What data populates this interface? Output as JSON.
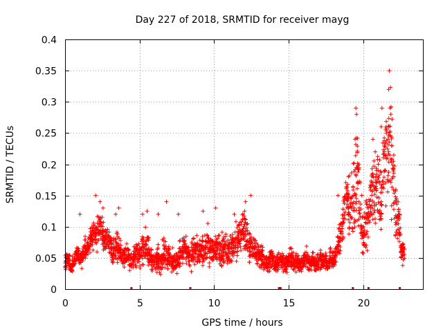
{
  "chart_data": {
    "type": "scatter",
    "title": "Day 227 of 2018, SRMTID for receiver mayg",
    "xlabel": "GPS time / hours",
    "ylabel": "SRMTID / TECUs",
    "xlim": [
      0,
      24
    ],
    "ylim": [
      0,
      0.4
    ],
    "x_ticks": [
      0,
      5,
      10,
      15,
      20
    ],
    "x_tick_labels": [
      "0",
      "5",
      "10",
      "15",
      "20"
    ],
    "y_ticks": [
      0,
      0.05,
      0.1,
      0.15,
      0.2,
      0.25,
      0.3,
      0.35,
      0.4
    ],
    "y_tick_labels": [
      "0",
      "0.05",
      "0.1",
      "0.15",
      "0.2",
      "0.25",
      "0.3",
      "0.35",
      "0.4"
    ],
    "grid": true,
    "marker": "plus",
    "color": "#ff0000",
    "series": [
      {
        "name": "SRMTID",
        "x": [
          0.0,
          0.2,
          0.4,
          0.6,
          0.8,
          1.0,
          1.2,
          1.4,
          1.6,
          1.8,
          2.0,
          2.2,
          2.4,
          2.6,
          2.8,
          3.0,
          3.2,
          3.4,
          3.6,
          3.8,
          4.0,
          4.2,
          4.4,
          4.6,
          4.8,
          5.0,
          5.2,
          5.4,
          5.6,
          5.8,
          6.0,
          6.2,
          6.4,
          6.6,
          6.8,
          7.0,
          7.2,
          7.4,
          7.6,
          7.8,
          8.0,
          8.2,
          8.4,
          8.6,
          8.8,
          9.0,
          9.2,
          9.4,
          9.6,
          9.8,
          10.0,
          10.2,
          10.4,
          10.6,
          10.8,
          11.0,
          11.2,
          11.4,
          11.6,
          11.8,
          12.0,
          12.2,
          12.4,
          12.6,
          12.8,
          13.0,
          13.2,
          13.4,
          13.6,
          13.8,
          14.0,
          14.2,
          14.4,
          14.6,
          14.8,
          15.0,
          15.2,
          15.4,
          15.6,
          15.8,
          16.0,
          16.2,
          16.4,
          16.6,
          16.8,
          17.0,
          17.2,
          17.4,
          17.6,
          17.8,
          18.0,
          18.2,
          18.4,
          18.6,
          18.8,
          19.0,
          19.2,
          19.4,
          19.6,
          19.8,
          20.0,
          20.2,
          20.4,
          20.6,
          20.8,
          21.0,
          21.2,
          21.4,
          21.6,
          21.8,
          22.0,
          22.2,
          22.4,
          22.6
        ],
        "values": [
          0.04,
          0.05,
          0.03,
          0.045,
          0.06,
          0.05,
          0.055,
          0.065,
          0.07,
          0.085,
          0.09,
          0.095,
          0.1,
          0.085,
          0.08,
          0.07,
          0.06,
          0.065,
          0.07,
          0.055,
          0.05,
          0.06,
          0.045,
          0.05,
          0.06,
          0.055,
          0.065,
          0.07,
          0.06,
          0.05,
          0.04,
          0.05,
          0.045,
          0.06,
          0.055,
          0.05,
          0.045,
          0.04,
          0.05,
          0.06,
          0.065,
          0.055,
          0.05,
          0.06,
          0.065,
          0.055,
          0.06,
          0.065,
          0.07,
          0.06,
          0.065,
          0.07,
          0.06,
          0.065,
          0.07,
          0.06,
          0.065,
          0.07,
          0.08,
          0.09,
          0.095,
          0.085,
          0.07,
          0.065,
          0.06,
          0.055,
          0.05,
          0.045,
          0.04,
          0.05,
          0.045,
          0.04,
          0.05,
          0.045,
          0.04,
          0.045,
          0.05,
          0.04,
          0.045,
          0.04,
          0.045,
          0.05,
          0.04,
          0.045,
          0.04,
          0.05,
          0.045,
          0.05,
          0.04,
          0.05,
          0.045,
          0.06,
          0.08,
          0.1,
          0.15,
          0.14,
          0.12,
          0.16,
          0.18,
          0.13,
          0.08,
          0.1,
          0.12,
          0.16,
          0.15,
          0.17,
          0.13,
          0.2,
          0.22,
          0.24,
          0.18,
          0.12,
          0.1,
          0.06
        ],
        "spread": [
          0.012,
          0.012,
          0.01,
          0.012,
          0.014,
          0.014,
          0.015,
          0.016,
          0.018,
          0.02,
          0.022,
          0.024,
          0.022,
          0.02,
          0.018,
          0.018,
          0.016,
          0.02,
          0.022,
          0.016,
          0.015,
          0.018,
          0.015,
          0.016,
          0.02,
          0.018,
          0.022,
          0.024,
          0.02,
          0.016,
          0.014,
          0.018,
          0.016,
          0.022,
          0.02,
          0.018,
          0.016,
          0.014,
          0.018,
          0.02,
          0.022,
          0.018,
          0.016,
          0.02,
          0.022,
          0.018,
          0.02,
          0.022,
          0.025,
          0.02,
          0.022,
          0.024,
          0.02,
          0.022,
          0.024,
          0.02,
          0.022,
          0.024,
          0.026,
          0.028,
          0.03,
          0.026,
          0.022,
          0.02,
          0.018,
          0.016,
          0.015,
          0.014,
          0.012,
          0.016,
          0.014,
          0.012,
          0.015,
          0.014,
          0.012,
          0.013,
          0.015,
          0.012,
          0.013,
          0.012,
          0.013,
          0.015,
          0.012,
          0.013,
          0.012,
          0.015,
          0.013,
          0.015,
          0.012,
          0.015,
          0.014,
          0.018,
          0.025,
          0.03,
          0.04,
          0.04,
          0.045,
          0.05,
          0.06,
          0.045,
          0.03,
          0.035,
          0.04,
          0.05,
          0.05,
          0.055,
          0.045,
          0.06,
          0.07,
          0.08,
          0.06,
          0.04,
          0.035,
          0.02
        ]
      }
    ],
    "peaks": [
      {
        "x": 1.0,
        "y": 0.12
      },
      {
        "x": 2.05,
        "y": 0.15
      },
      {
        "x": 2.35,
        "y": 0.14
      },
      {
        "x": 2.55,
        "y": 0.13
      },
      {
        "x": 3.4,
        "y": 0.12
      },
      {
        "x": 3.6,
        "y": 0.13
      },
      {
        "x": 5.2,
        "y": 0.12
      },
      {
        "x": 5.5,
        "y": 0.125
      },
      {
        "x": 6.25,
        "y": 0.12
      },
      {
        "x": 6.8,
        "y": 0.14
      },
      {
        "x": 7.6,
        "y": 0.12
      },
      {
        "x": 9.25,
        "y": 0.125
      },
      {
        "x": 10.1,
        "y": 0.13
      },
      {
        "x": 11.35,
        "y": 0.12
      },
      {
        "x": 12.1,
        "y": 0.14
      },
      {
        "x": 12.45,
        "y": 0.15
      },
      {
        "x": 18.3,
        "y": 0.15
      },
      {
        "x": 19.0,
        "y": 0.18
      },
      {
        "x": 19.5,
        "y": 0.29
      },
      {
        "x": 19.55,
        "y": 0.28
      },
      {
        "x": 19.45,
        "y": 0.24
      },
      {
        "x": 19.7,
        "y": 0.2
      },
      {
        "x": 20.65,
        "y": 0.24
      },
      {
        "x": 20.8,
        "y": 0.22
      },
      {
        "x": 21.0,
        "y": 0.2
      },
      {
        "x": 21.2,
        "y": 0.26
      },
      {
        "x": 21.25,
        "y": 0.29
      },
      {
        "x": 21.55,
        "y": 0.25
      },
      {
        "x": 21.65,
        "y": 0.24
      },
      {
        "x": 21.7,
        "y": 0.32
      },
      {
        "x": 21.75,
        "y": 0.35
      },
      {
        "x": 21.8,
        "y": 0.29
      },
      {
        "x": 21.85,
        "y": 0.28
      },
      {
        "x": 21.9,
        "y": 0.23
      },
      {
        "x": 22.05,
        "y": 0.18
      },
      {
        "x": 22.2,
        "y": 0.14
      }
    ],
    "baseline_gaps_x": [
      4.45,
      8.4,
      14.35,
      14.45,
      19.3,
      20.35,
      22.45
    ]
  }
}
